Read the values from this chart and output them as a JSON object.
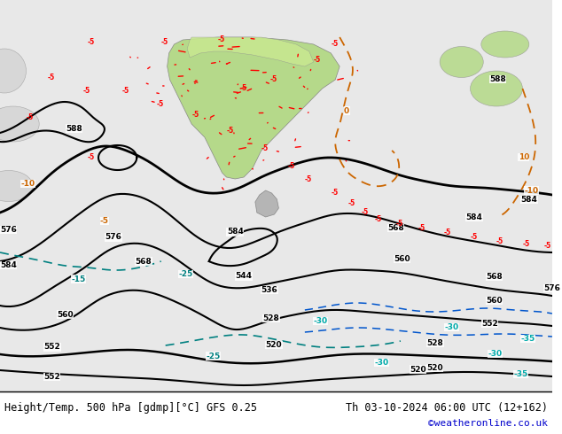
{
  "title_left": "Height/Temp. 500 hPa [gdmp][°C] GFS 0.25",
  "title_right": "Th 03-10-2024 06:00 UTC (12+162)",
  "copyright": "©weatheronline.co.uk",
  "bg_color": "#ffffff",
  "map_bg": "#f0f0f0",
  "figsize": [
    6.34,
    4.9
  ],
  "dpi": 100,
  "bottom_text_color": "#000000",
  "copyright_color": "#0000cc"
}
